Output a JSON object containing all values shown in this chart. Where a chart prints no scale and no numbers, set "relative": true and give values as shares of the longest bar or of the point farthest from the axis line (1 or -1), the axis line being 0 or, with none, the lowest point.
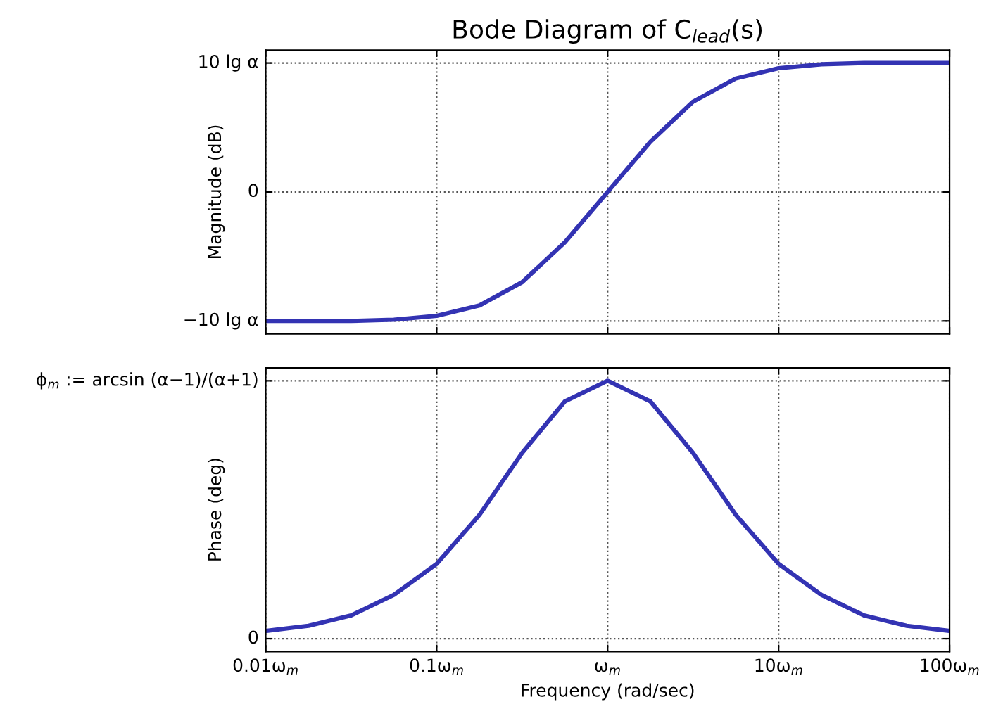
{
  "chart_data": [
    {
      "type": "line",
      "title": "Bode Diagram of C$_{lead}$(s)",
      "ylabel": "Magnitude (dB)",
      "relative": true,
      "x": [
        0.01,
        0.0178,
        0.0316,
        0.0562,
        0.1,
        0.178,
        0.316,
        0.562,
        1,
        1.78,
        3.16,
        5.62,
        10,
        17.8,
        31.6,
        56.2,
        100
      ],
      "series": [
        {
          "color": "#3333b3",
          "values": [
            -1.0,
            -1.0,
            -1.0,
            -0.99,
            -0.96,
            -0.88,
            -0.7,
            -0.39,
            0,
            0.39,
            0.7,
            0.88,
            0.96,
            0.99,
            1.0,
            1.0,
            1.0
          ]
        }
      ],
      "annotations": [
        "10 lg α",
        "0",
        "−10 lg α"
      ],
      "log": "x",
      "xlim": [
        0.01,
        100
      ],
      "xticks": [
        0.01,
        0.1,
        1,
        10,
        100
      ],
      "tick_labels": false,
      "grid": true,
      "line_style": "solid",
      "marker": "none"
    },
    {
      "type": "line",
      "xlabel": "Frequency (rad/sec)",
      "ylabel": "Phase (deg)",
      "relative": true,
      "x": [
        0.01,
        0.0178,
        0.0316,
        0.0562,
        0.1,
        0.178,
        0.316,
        0.562,
        1,
        1.78,
        3.16,
        5.62,
        10,
        17.8,
        31.6,
        56.2,
        100
      ],
      "series": [
        {
          "color": "#3333b3",
          "values": [
            0.03,
            0.05,
            0.09,
            0.17,
            0.29,
            0.48,
            0.72,
            0.92,
            1,
            0.92,
            0.72,
            0.48,
            0.29,
            0.17,
            0.09,
            0.05,
            0.03
          ]
        }
      ],
      "annotations": [
        "ϕ$_{m}$ := arcsin (α−1)/(α+1)",
        "0"
      ],
      "log": "x",
      "xlim": [
        0.01,
        100
      ],
      "xticks": [
        {
          "value": 0.01,
          "label": "0.01ω$_{m}$"
        },
        {
          "value": 0.1,
          "label": "0.1ω$_{m}$"
        },
        {
          "value": 1,
          "label": "ω$_{m}$"
        },
        {
          "value": 10,
          "label": "10ω$_{m}$"
        },
        {
          "value": 100,
          "label": "100ω$_{m}$"
        }
      ],
      "tick_labels": "x",
      "grid": true,
      "line_style": "solid",
      "marker": "none"
    }
  ]
}
